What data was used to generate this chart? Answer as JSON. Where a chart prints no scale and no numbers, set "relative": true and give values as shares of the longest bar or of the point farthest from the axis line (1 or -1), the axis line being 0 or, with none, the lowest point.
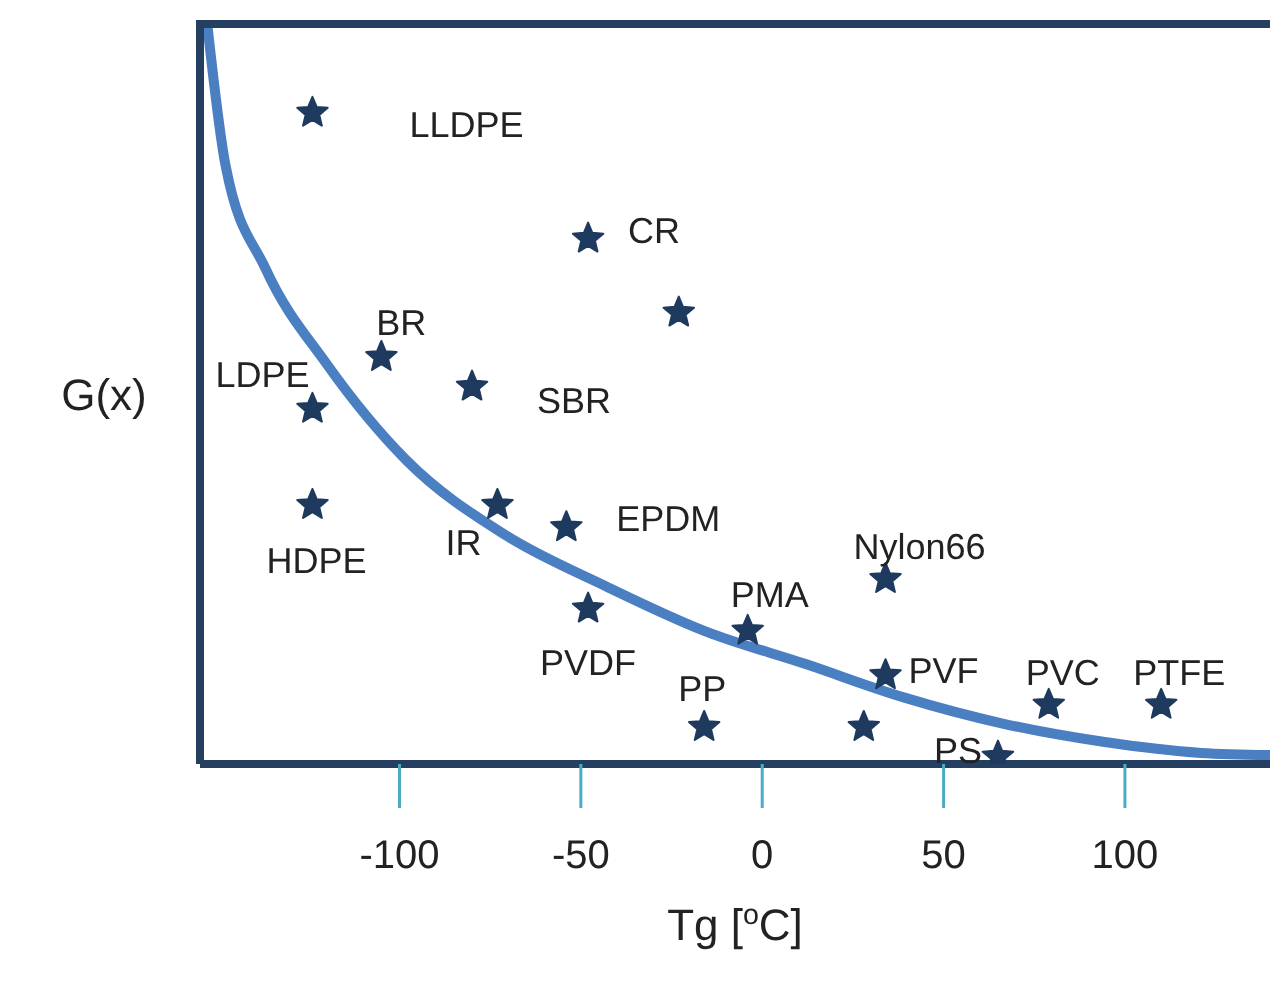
{
  "chart_data": {
    "type": "scatter",
    "xlabel": "Tg [$^{o}$C]",
    "ylabel": "G(x)",
    "relative": true,
    "xlim": [
      -155,
      140
    ],
    "xticks": [
      -100,
      -50,
      0,
      50,
      100
    ],
    "marker": "star",
    "series": [
      {
        "color": "#1f3a5f",
        "x": [
          -124,
          -48,
          -23,
          -105,
          -80,
          -124,
          -124,
          -73,
          -54,
          -48,
          -4,
          34,
          34,
          28,
          -16,
          79,
          110,
          65
        ],
        "values": [
          0.88,
          0.71,
          0.61,
          0.55,
          0.51,
          0.48,
          0.35,
          0.35,
          0.32,
          0.21,
          0.18,
          0.25,
          0.12,
          0.05,
          0.05,
          0.08,
          0.08,
          0.01
        ]
      },
      {
        "type": "line",
        "color": "#4a7fc1",
        "marker": "none",
        "line_style": "solid",
        "x": [
          -153,
          -148,
          -137,
          -120,
          -98,
          -71,
          -43,
          -16,
          12,
          39,
          66,
          94,
          121,
          140
        ],
        "values": [
          1.0,
          0.81,
          0.67,
          0.54,
          0.41,
          0.31,
          0.24,
          0.18,
          0.135,
          0.09,
          0.055,
          0.03,
          0.015,
          0.012
        ]
      }
    ],
    "annotations": [
      {
        "text": "LLDPE",
        "x": -124,
        "y": 0.88
      },
      {
        "text": "CR",
        "x": -48,
        "y": 0.71
      },
      {
        "text": "BR",
        "x": -105,
        "y": 0.55
      },
      {
        "text": "SBR",
        "x": -80,
        "y": 0.51
      },
      {
        "text": "LDPE",
        "x": -124,
        "y": 0.48
      },
      {
        "text": "HDPE",
        "x": -124,
        "y": 0.35
      },
      {
        "text": "IR",
        "x": -73,
        "y": 0.35
      },
      {
        "text": "EPDM",
        "x": -54,
        "y": 0.32
      },
      {
        "text": "PVDF",
        "x": -48,
        "y": 0.21
      },
      {
        "text": "PMA",
        "x": -4,
        "y": 0.18
      },
      {
        "text": "Nylon66",
        "x": 34,
        "y": 0.25
      },
      {
        "text": "PVF",
        "x": 34,
        "y": 0.12
      },
      {
        "text": "PP",
        "x": -16,
        "y": 0.05
      },
      {
        "text": "PVC",
        "x": 79,
        "y": 0.08
      },
      {
        "text": "PTFE",
        "x": 110,
        "y": 0.08
      },
      {
        "text": "PS",
        "x": 65,
        "y": 0.01
      }
    ]
  }
}
